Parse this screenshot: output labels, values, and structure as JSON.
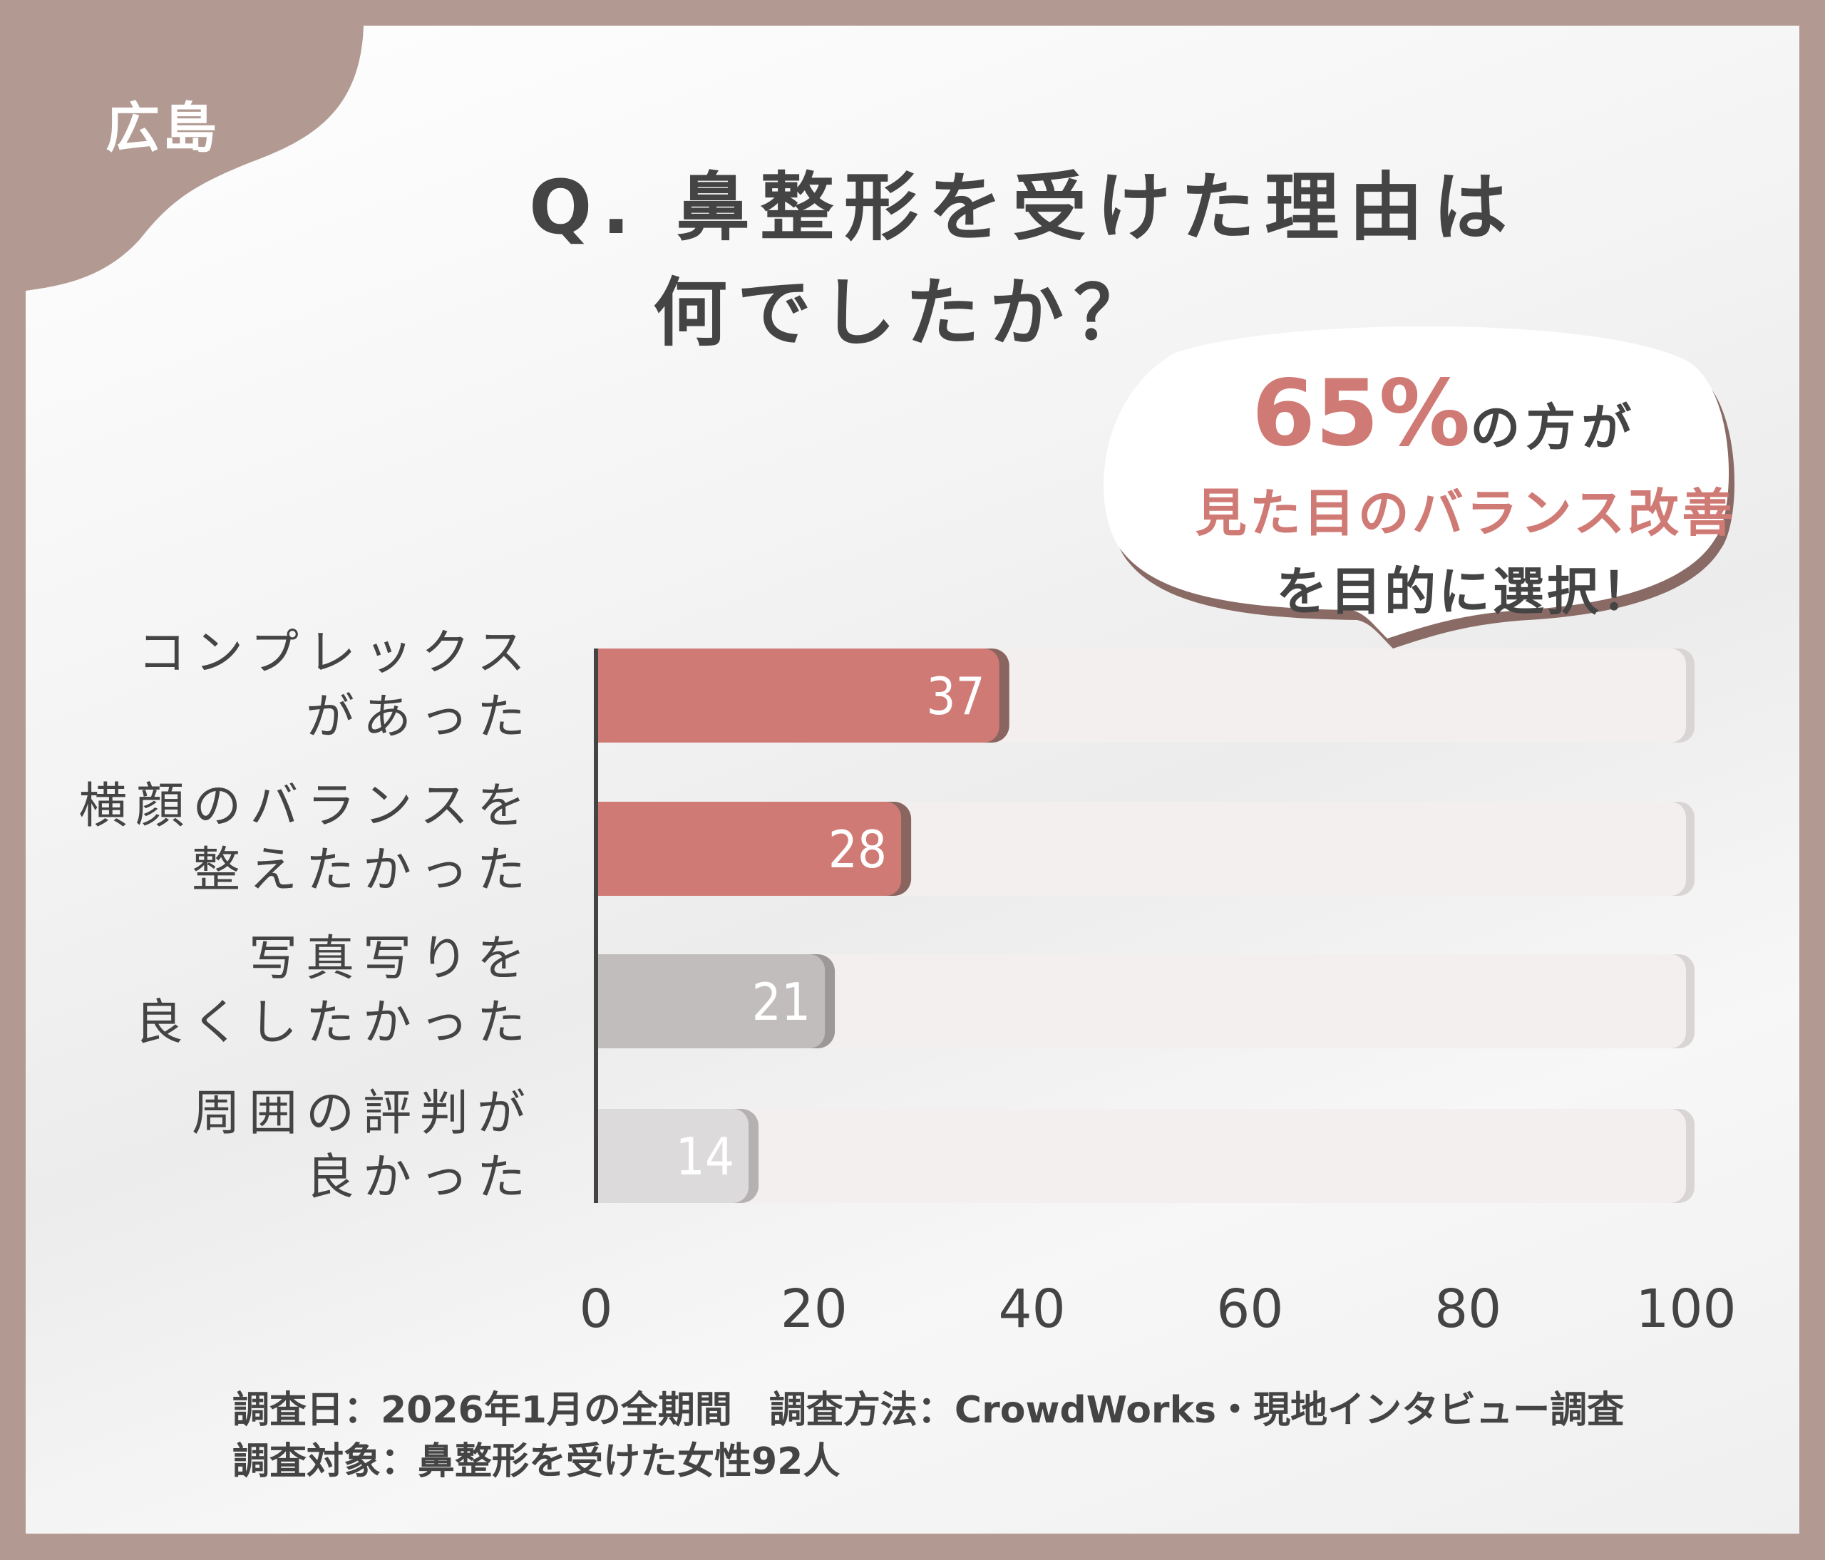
{
  "region": "広島",
  "title": {
    "line1": "Q. 鼻整形を受けた理由は",
    "line2": "何でしたか？"
  },
  "callout": {
    "percent": "65%",
    "line1_suffix": "の方が",
    "line2": "見た目のバランス改善",
    "line3": "を目的に選択！"
  },
  "chart_data": {
    "type": "bar",
    "orientation": "horizontal",
    "categories": [
      [
        "コンプレックス",
        "があった"
      ],
      [
        "横顔のバランスを",
        "整えたかった"
      ],
      [
        "写真写りを",
        "良くしたかった"
      ],
      [
        "周囲の評判が",
        "良かった"
      ]
    ],
    "values": [
      37,
      28,
      21,
      14
    ],
    "value_labels": [
      "37",
      "28",
      "21",
      "14"
    ],
    "xlim": [
      0,
      100
    ],
    "xticks": [
      "0",
      "20",
      "40",
      "60",
      "80",
      "100"
    ],
    "colors": [
      "#d07a75",
      "#d07a75",
      "#c1bdbc",
      "#dcdadb"
    ],
    "track_color": "#f3efee",
    "grid": false
  },
  "footer": {
    "line1": "調査日：2026年1月の全期間　調査方法：CrowdWorks・現地インタビュー調査",
    "line2": "調査対象：鼻整形を受けた女性92人"
  },
  "colors": {
    "frame": "#b29a92",
    "accent": "#d07a75",
    "text": "#444444"
  }
}
